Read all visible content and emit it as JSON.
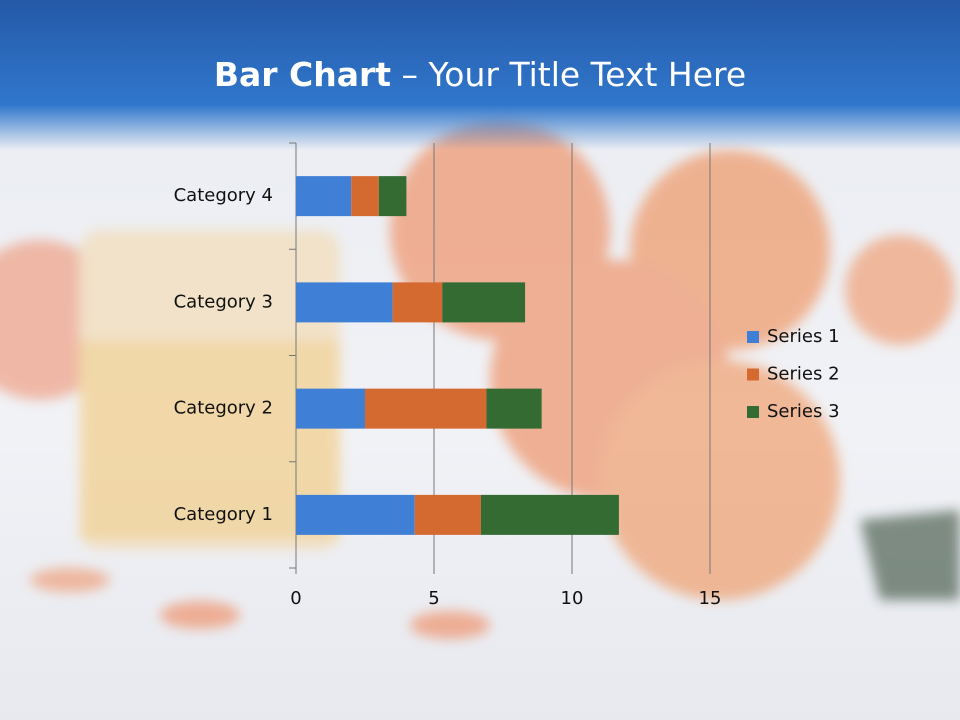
{
  "title_bold": "Bar Chart",
  "title_rest": "– Your Title Text Here",
  "chart_data": {
    "type": "stacked-barh",
    "categories": [
      "Category 1",
      "Category 2",
      "Category 3",
      "Category 4"
    ],
    "series": [
      {
        "name": "Series 1",
        "color": "#3f7fd6",
        "values": [
          4.3,
          2.5,
          3.5,
          2
        ]
      },
      {
        "name": "Series 2",
        "color": "#d56a31",
        "values": [
          2.4,
          4.4,
          1.8,
          1
        ]
      },
      {
        "name": "Series 3",
        "color": "#336b33",
        "values": [
          5,
          2,
          3,
          1
        ]
      }
    ],
    "xlim": [
      0,
      15
    ],
    "xticks": [
      0,
      5,
      10,
      15
    ],
    "grid": true,
    "legend": "right"
  }
}
